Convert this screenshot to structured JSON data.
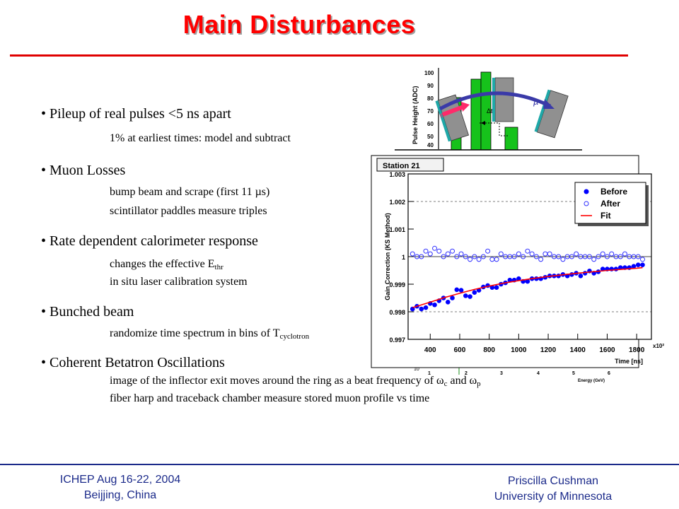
{
  "title": "Main Disturbances",
  "bullets": [
    {
      "text": "Pileup of real pulses <5 ns apart",
      "subs": [
        "1% at earliest times:  model and subtract"
      ]
    },
    {
      "text": "Muon Losses",
      "subs": [
        "bump beam and scrape (first 11 µs)",
        "scintillator paddles measure triples"
      ]
    },
    {
      "text": "Rate dependent calorimeter response",
      "subs": [
        "changes the effective E",
        "in situ laser calibration system"
      ],
      "sub_thr": "thr"
    },
    {
      "text": "Bunched beam",
      "subs": [
        "randomize time spectrum in bins of T"
      ],
      "sub_cyclotron": "cyclotron"
    },
    {
      "text": "Coherent Betatron Oscillations",
      "subs": [
        "image of the inflector exit moves around the ring as a beat frequency of ω",
        "fiber harp and traceback  chamber measure stored muon profile vs time"
      ],
      "sub_c": "c",
      "and_text": " and ω",
      "sub_p": "p"
    }
  ],
  "footer": {
    "left_line1": "ICHEP   Aug 16-22, 2004",
    "left_line2": "Beijjing, China",
    "right_line1": "Priscilla Cushman",
    "right_line2": "University of Minnesota"
  },
  "figure_top": {
    "ylabel": "Pulse Height (ADC)",
    "yticks": [
      "100",
      "90",
      "80",
      "70",
      "60",
      "50",
      "40"
    ],
    "e_label": "e",
    "mu_label": "µ",
    "delta_label": "Δt",
    "colors": {
      "bar": "#16c21b",
      "detector": "#909090",
      "detector_edge": "#1ea8a8",
      "arrow": "#3a3aa8",
      "electron": "#ff2a6a"
    }
  },
  "chart_data": {
    "type": "scatter",
    "title": "Station 21",
    "xlabel": "Time [ns]",
    "ylabel": "Gain Correction (KS Method)",
    "x_multiplier": "x10²",
    "xlim": [
      250,
      1900
    ],
    "ylim": [
      0.997,
      1.003
    ],
    "xticks": [
      400,
      600,
      800,
      1000,
      1200,
      1400,
      1600,
      1800
    ],
    "yticks": [
      "0.997",
      "0.998",
      "0.999",
      "1",
      "1.001",
      "1.002",
      "1.003"
    ],
    "dashed_lines": [
      0.998,
      1.002
    ],
    "reference_line": 1.0,
    "legend_position": "top-right",
    "series": [
      {
        "name": "Before",
        "marker": "filled-circle",
        "color": "#0000ff",
        "x": [
          280,
          310,
          340,
          370,
          400,
          430,
          460,
          490,
          520,
          550,
          580,
          610,
          640,
          670,
          700,
          730,
          760,
          790,
          820,
          850,
          880,
          910,
          940,
          970,
          1000,
          1030,
          1060,
          1090,
          1120,
          1150,
          1180,
          1210,
          1240,
          1270,
          1300,
          1330,
          1360,
          1390,
          1420,
          1450,
          1480,
          1510,
          1540,
          1570,
          1600,
          1630,
          1660,
          1690,
          1720,
          1750,
          1780,
          1810,
          1840
        ],
        "y": [
          0.9981,
          0.9982,
          0.9981,
          0.99815,
          0.9983,
          0.99825,
          0.9984,
          0.9985,
          0.99835,
          0.9985,
          0.9988,
          0.99878,
          0.99858,
          0.99855,
          0.9987,
          0.99878,
          0.9989,
          0.99895,
          0.99888,
          0.99888,
          0.999,
          0.99905,
          0.99915,
          0.99915,
          0.9992,
          0.9991,
          0.9991,
          0.9992,
          0.9992,
          0.9992,
          0.99925,
          0.9993,
          0.9993,
          0.9993,
          0.99935,
          0.9993,
          0.99935,
          0.9994,
          0.9993,
          0.9994,
          0.99948,
          0.9994,
          0.99945,
          0.99955,
          0.99955,
          0.99955,
          0.99955,
          0.9996,
          0.9996,
          0.9996,
          0.99965,
          0.9997,
          0.9997
        ]
      },
      {
        "name": "After",
        "marker": "open-circle",
        "color": "#3030ff",
        "x": [
          280,
          310,
          340,
          370,
          400,
          430,
          460,
          490,
          520,
          550,
          580,
          610,
          640,
          670,
          700,
          730,
          760,
          790,
          820,
          850,
          880,
          910,
          940,
          970,
          1000,
          1030,
          1060,
          1090,
          1120,
          1150,
          1180,
          1210,
          1240,
          1270,
          1300,
          1330,
          1360,
          1390,
          1420,
          1450,
          1480,
          1510,
          1540,
          1570,
          1600,
          1630,
          1660,
          1690,
          1720,
          1750,
          1780,
          1810,
          1840
        ],
        "y": [
          1.0001,
          1.0,
          1.0,
          1.0002,
          1.0001,
          1.0003,
          1.0002,
          1.0,
          1.0001,
          1.0002,
          1.0,
          1.0001,
          1.0,
          0.9999,
          1.0,
          0.9999,
          1.0,
          1.0002,
          0.9999,
          0.9999,
          1.0001,
          1.0,
          1.0,
          1.0,
          1.0001,
          1.0,
          1.0002,
          1.0001,
          1.0,
          0.9999,
          1.0001,
          1.0001,
          1.0,
          1.0,
          0.9999,
          1.0,
          1.0,
          1.0001,
          1.0,
          1.0,
          1.0,
          0.9999,
          1.0,
          1.0001,
          1.0,
          1.0001,
          1.0,
          1.0,
          1.0001,
          1.0,
          1.0,
          1.0,
          0.9999
        ]
      },
      {
        "name": "Fit",
        "marker": "line",
        "color": "#ff0000",
        "x": [
          280,
          400,
          500,
          600,
          700,
          800,
          900,
          1000,
          1100,
          1200,
          1300,
          1400,
          1500,
          1600,
          1700,
          1800,
          1840
        ],
        "y": [
          0.99815,
          0.99835,
          0.99852,
          0.99867,
          0.99881,
          0.99893,
          0.99904,
          0.99913,
          0.99921,
          0.99928,
          0.99934,
          0.9994,
          0.99945,
          0.9995,
          0.99954,
          0.99958,
          0.9996
        ]
      }
    ]
  },
  "figure_bottom": {
    "exponent": "10",
    "energy_label": "Energy (GeV)",
    "ticks": [
      "1",
      "2",
      "3",
      "4",
      "5",
      "6"
    ]
  }
}
